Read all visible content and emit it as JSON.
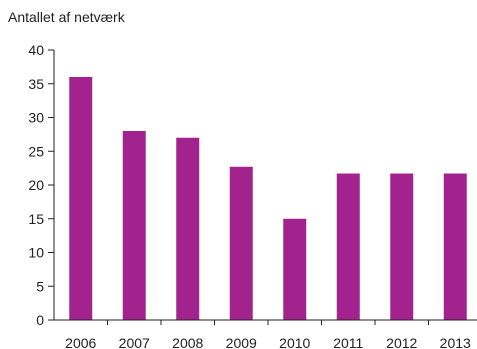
{
  "chart_data": {
    "type": "bar",
    "title": "Antallet af netværk",
    "xlabel": "",
    "ylabel": "",
    "categories": [
      "2006",
      "2007",
      "2008",
      "2009",
      "2010",
      "2011",
      "2012",
      "2013"
    ],
    "values": [
      36,
      28,
      27,
      22.7,
      15,
      21.7,
      21.7,
      21.7
    ],
    "ylim": [
      0,
      40
    ],
    "yticks": [
      0,
      5,
      10,
      15,
      20,
      25,
      30,
      35,
      40
    ],
    "grid": false,
    "legend": "none",
    "colors": {
      "bar": "#a3238e",
      "axis": "#222222"
    }
  }
}
